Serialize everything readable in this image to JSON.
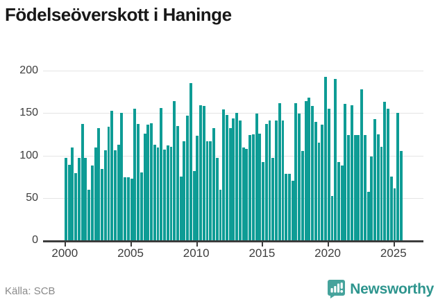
{
  "title": "Födelseöverskott i Haninge",
  "source": "Källa: SCB",
  "brand": {
    "name": "Newsworthy",
    "logo_icon": "bar-chart-speech-bubble-icon"
  },
  "colors": {
    "bar": "#0e9c95",
    "grid": "#e4e4e4",
    "axis": "#3c3c3c",
    "tick_text": "#3d3d3d",
    "source_text": "#8a8a8a",
    "brand_teal": "#2e958e",
    "badge_teal": "#46a39c"
  },
  "chart_data": {
    "type": "bar",
    "title": "Födelseöverskott i Haninge",
    "xlabel": "",
    "ylabel": "",
    "ylim": [
      0,
      200
    ],
    "y_ticks": [
      0,
      50,
      100,
      150,
      200
    ],
    "x_tick_labels": [
      "2000",
      "2005",
      "2010",
      "2015",
      "2020",
      "2025"
    ],
    "grid": "horizontal",
    "legend": "none",
    "resolution": "quarterly",
    "start_year": 2000,
    "start_quarter": 1,
    "end_year": 2025,
    "end_quarter": 3,
    "series": [
      {
        "name": "Födelseöverskott",
        "values": [
          97,
          89,
          109,
          79,
          97,
          137,
          97,
          60,
          88,
          109,
          132,
          84,
          106,
          134,
          153,
          106,
          113,
          150,
          74,
          74,
          73,
          155,
          137,
          80,
          126,
          136,
          138,
          113,
          109,
          156,
          107,
          112,
          110,
          164,
          135,
          75,
          117,
          147,
          185,
          82,
          123,
          159,
          158,
          117,
          117,
          132,
          97,
          60,
          154,
          148,
          132,
          144,
          150,
          141,
          109,
          108,
          124,
          125,
          149,
          126,
          92,
          137,
          141,
          97,
          141,
          162,
          141,
          78,
          78,
          70,
          162,
          149,
          105,
          164,
          168,
          158,
          140,
          115,
          136,
          193,
          155,
          52,
          190,
          92,
          88,
          161,
          124,
          159,
          124,
          124,
          178,
          124,
          57,
          99,
          143,
          125,
          110,
          163,
          155,
          75,
          61,
          150,
          105
        ]
      }
    ]
  }
}
